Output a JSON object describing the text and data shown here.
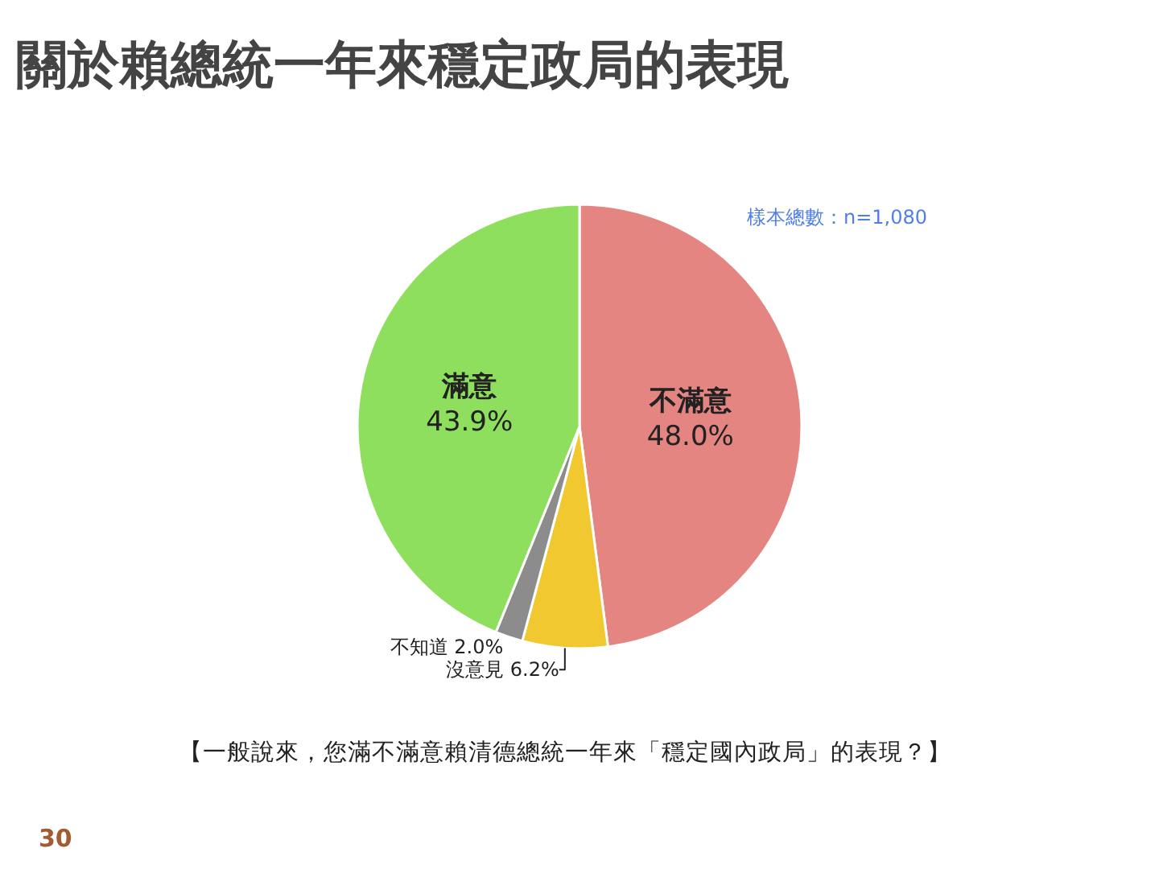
{
  "chart_data": {
    "type": "pie",
    "title": "關於賴總統一年來穩定政局的表現",
    "categories": [
      "不滿意",
      "沒意見",
      "不知道",
      "滿意"
    ],
    "values": [
      48.0,
      6.2,
      2.0,
      43.9
    ],
    "colors": [
      "#e48582",
      "#f2c830",
      "#8c8c8c",
      "#8fdf5f"
    ],
    "value_labels": [
      "48.0%",
      "6.2%",
      "2.0%",
      "43.9%"
    ],
    "annotations": [
      "樣本總數：n=1,080",
      "【一般說來，您滿不滿意賴清德總統一年來「穩定國內政局」的表現？】",
      "30"
    ],
    "legend": false
  }
}
